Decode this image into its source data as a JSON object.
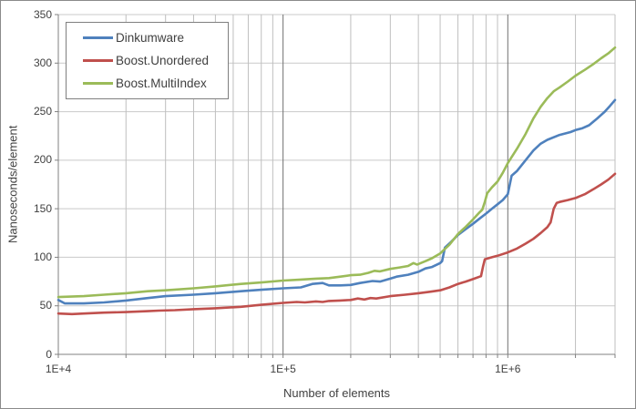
{
  "chart_data": {
    "type": "line",
    "title": "",
    "xlabel": "Number of elements",
    "ylabel": "Nanoseconds/element",
    "legend_position": "top-left",
    "grid": {
      "horizontal_major": true,
      "vertical_log_minor": true
    },
    "x_axis": {
      "scale": "log",
      "min": 10000,
      "max": 3000000,
      "tick_values": [
        10000,
        100000,
        1000000
      ],
      "tick_labels": [
        "1E+4",
        "1E+5",
        "1E+6"
      ]
    },
    "y_axis": {
      "min": 0,
      "max": 350,
      "tick_step": 50,
      "tick_labels": [
        "0",
        "50",
        "100",
        "150",
        "200",
        "250",
        "300",
        "350"
      ]
    },
    "series": [
      {
        "name": "Dinkumware",
        "color": "#4F81BD",
        "points": [
          [
            10000,
            56
          ],
          [
            10700,
            52.5
          ],
          [
            13000,
            52.5
          ],
          [
            16000,
            53.5
          ],
          [
            20000,
            55.5
          ],
          [
            25000,
            58
          ],
          [
            30000,
            60
          ],
          [
            40000,
            61.5
          ],
          [
            50000,
            63
          ],
          [
            65000,
            65
          ],
          [
            80000,
            66.5
          ],
          [
            100000,
            68
          ],
          [
            120000,
            69
          ],
          [
            135000,
            72.5
          ],
          [
            150000,
            73.5
          ],
          [
            160000,
            71
          ],
          [
            180000,
            71
          ],
          [
            200000,
            71.5
          ],
          [
            220000,
            73.5
          ],
          [
            250000,
            75.5
          ],
          [
            270000,
            75
          ],
          [
            300000,
            78
          ],
          [
            320000,
            80
          ],
          [
            360000,
            82
          ],
          [
            400000,
            85
          ],
          [
            430000,
            88.5
          ],
          [
            460000,
            90
          ],
          [
            500000,
            94
          ],
          [
            510000,
            96
          ],
          [
            525000,
            110
          ],
          [
            560000,
            116
          ],
          [
            600000,
            123
          ],
          [
            650000,
            129
          ],
          [
            700000,
            134.5
          ],
          [
            750000,
            140
          ],
          [
            800000,
            145
          ],
          [
            850000,
            150
          ],
          [
            900000,
            154.5
          ],
          [
            950000,
            159
          ],
          [
            1000000,
            165
          ],
          [
            1040000,
            184
          ],
          [
            1100000,
            189
          ],
          [
            1200000,
            200
          ],
          [
            1300000,
            210
          ],
          [
            1400000,
            217
          ],
          [
            1500000,
            221
          ],
          [
            1700000,
            226
          ],
          [
            1900000,
            229
          ],
          [
            2000000,
            231
          ],
          [
            2150000,
            233
          ],
          [
            2300000,
            236
          ],
          [
            2500000,
            243
          ],
          [
            2700000,
            250
          ],
          [
            2850000,
            256
          ],
          [
            3000000,
            262
          ]
        ]
      },
      {
        "name": "Boost.Unordered",
        "color": "#C0504D",
        "points": [
          [
            10000,
            42
          ],
          [
            11500,
            41.5
          ],
          [
            13000,
            42
          ],
          [
            16000,
            43
          ],
          [
            20000,
            43.5
          ],
          [
            25000,
            44.5
          ],
          [
            28000,
            45
          ],
          [
            33000,
            45.5
          ],
          [
            40000,
            46.5
          ],
          [
            50000,
            47.5
          ],
          [
            65000,
            49
          ],
          [
            80000,
            51
          ],
          [
            100000,
            53
          ],
          [
            115000,
            54
          ],
          [
            125000,
            53.5
          ],
          [
            140000,
            54.5
          ],
          [
            150000,
            54
          ],
          [
            160000,
            55
          ],
          [
            180000,
            55.5
          ],
          [
            200000,
            56
          ],
          [
            215000,
            57.5
          ],
          [
            230000,
            56.5
          ],
          [
            245000,
            58
          ],
          [
            260000,
            57.5
          ],
          [
            300000,
            60
          ],
          [
            350000,
            61.5
          ],
          [
            400000,
            63
          ],
          [
            450000,
            64.5
          ],
          [
            500000,
            66
          ],
          [
            550000,
            69
          ],
          [
            600000,
            72.5
          ],
          [
            650000,
            75
          ],
          [
            700000,
            77.5
          ],
          [
            760000,
            80.5
          ],
          [
            775000,
            90
          ],
          [
            790000,
            98
          ],
          [
            850000,
            100
          ],
          [
            900000,
            101.5
          ],
          [
            1000000,
            105
          ],
          [
            1100000,
            109
          ],
          [
            1200000,
            114
          ],
          [
            1300000,
            119
          ],
          [
            1400000,
            125
          ],
          [
            1500000,
            131
          ],
          [
            1550000,
            136
          ],
          [
            1600000,
            150
          ],
          [
            1650000,
            156
          ],
          [
            1700000,
            157
          ],
          [
            1850000,
            159
          ],
          [
            2000000,
            161
          ],
          [
            2200000,
            165
          ],
          [
            2400000,
            170
          ],
          [
            2600000,
            175
          ],
          [
            2800000,
            180
          ],
          [
            3000000,
            186
          ]
        ]
      },
      {
        "name": "Boost.MultiIndex",
        "color": "#9BBB59",
        "points": [
          [
            10000,
            59
          ],
          [
            13000,
            60
          ],
          [
            16000,
            61.5
          ],
          [
            20000,
            63
          ],
          [
            25000,
            65
          ],
          [
            30000,
            66
          ],
          [
            40000,
            68
          ],
          [
            50000,
            70
          ],
          [
            65000,
            72.5
          ],
          [
            80000,
            74
          ],
          [
            100000,
            76
          ],
          [
            120000,
            77
          ],
          [
            140000,
            78
          ],
          [
            160000,
            78.5
          ],
          [
            180000,
            80
          ],
          [
            200000,
            81.5
          ],
          [
            220000,
            82
          ],
          [
            240000,
            84
          ],
          [
            255000,
            86
          ],
          [
            270000,
            85.5
          ],
          [
            300000,
            88
          ],
          [
            330000,
            89.5
          ],
          [
            360000,
            91
          ],
          [
            380000,
            94
          ],
          [
            395000,
            92.5
          ],
          [
            430000,
            96
          ],
          [
            460000,
            99
          ],
          [
            500000,
            104
          ],
          [
            550000,
            113
          ],
          [
            600000,
            124
          ],
          [
            650000,
            131.5
          ],
          [
            700000,
            139
          ],
          [
            750000,
            146.5
          ],
          [
            770000,
            149
          ],
          [
            790000,
            157
          ],
          [
            810000,
            166
          ],
          [
            850000,
            172
          ],
          [
            900000,
            178
          ],
          [
            950000,
            187
          ],
          [
            1000000,
            197
          ],
          [
            1100000,
            212
          ],
          [
            1200000,
            227
          ],
          [
            1300000,
            243
          ],
          [
            1400000,
            255
          ],
          [
            1500000,
            264
          ],
          [
            1600000,
            271
          ],
          [
            1700000,
            275
          ],
          [
            1850000,
            281
          ],
          [
            2000000,
            287
          ],
          [
            2200000,
            293
          ],
          [
            2400000,
            299
          ],
          [
            2600000,
            305
          ],
          [
            2800000,
            310
          ],
          [
            3000000,
            316
          ]
        ]
      }
    ],
    "style_colors": {
      "axis_line": "#808080",
      "grid_horizontal": "#c9c9c9",
      "grid_minor_vertical": "#bfbfbf",
      "grid_major_vertical": "#717171",
      "text": "#404040"
    }
  }
}
